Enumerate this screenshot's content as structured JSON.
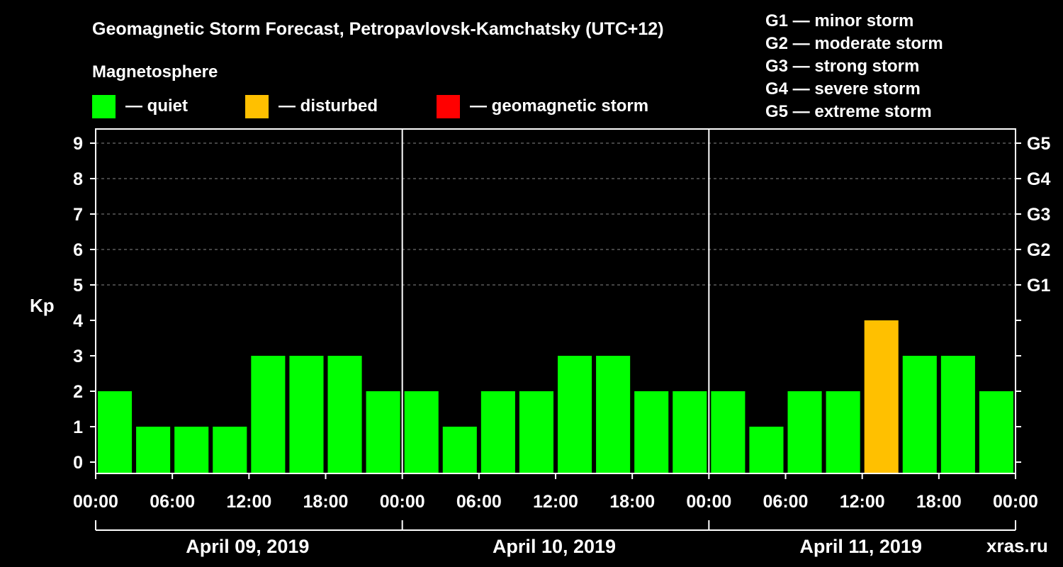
{
  "chart_data": {
    "type": "bar",
    "title": "Geomagnetic Storm Forecast, Petropavlovsk-Kamchatsky (UTC+12)",
    "subtitle": "Magnetosphere",
    "legend": [
      {
        "label": "— quiet",
        "color": "#00ff00"
      },
      {
        "label": "— disturbed",
        "color": "#ffc000"
      },
      {
        "label": "— geomagnetic storm",
        "color": "#ff0000"
      }
    ],
    "storm_scale": [
      "G1 — minor storm",
      "G2 — moderate storm",
      "G3 — strong storm",
      "G4 — severe storm",
      "G5 — extreme storm"
    ],
    "ylabel": "Kp",
    "ylim": [
      0,
      9
    ],
    "y_ticks": [
      "0",
      "1",
      "2",
      "3",
      "4",
      "5",
      "6",
      "7",
      "8",
      "9"
    ],
    "right_ticks": [
      {
        "kp": 5,
        "label": "G1"
      },
      {
        "kp": 6,
        "label": "G2"
      },
      {
        "kp": 7,
        "label": "G3"
      },
      {
        "kp": 8,
        "label": "G4"
      },
      {
        "kp": 9,
        "label": "G5"
      }
    ],
    "x_tick_labels": [
      "00:00",
      "06:00",
      "12:00",
      "18:00",
      "00:00",
      "06:00",
      "12:00",
      "18:00",
      "00:00",
      "06:00",
      "12:00",
      "18:00",
      "00:00"
    ],
    "days": [
      "April 09, 2019",
      "April 10, 2019",
      "April 11, 2019"
    ],
    "values": [
      2,
      1,
      1,
      1,
      3,
      3,
      3,
      2,
      2,
      1,
      2,
      2,
      3,
      3,
      2,
      2,
      2,
      1,
      2,
      2,
      4,
      3,
      3,
      2
    ],
    "colors": {
      "quiet": "#00ff00",
      "disturbed": "#ffc000",
      "storm": "#ff0000"
    }
  },
  "watermark": "xras.ru"
}
